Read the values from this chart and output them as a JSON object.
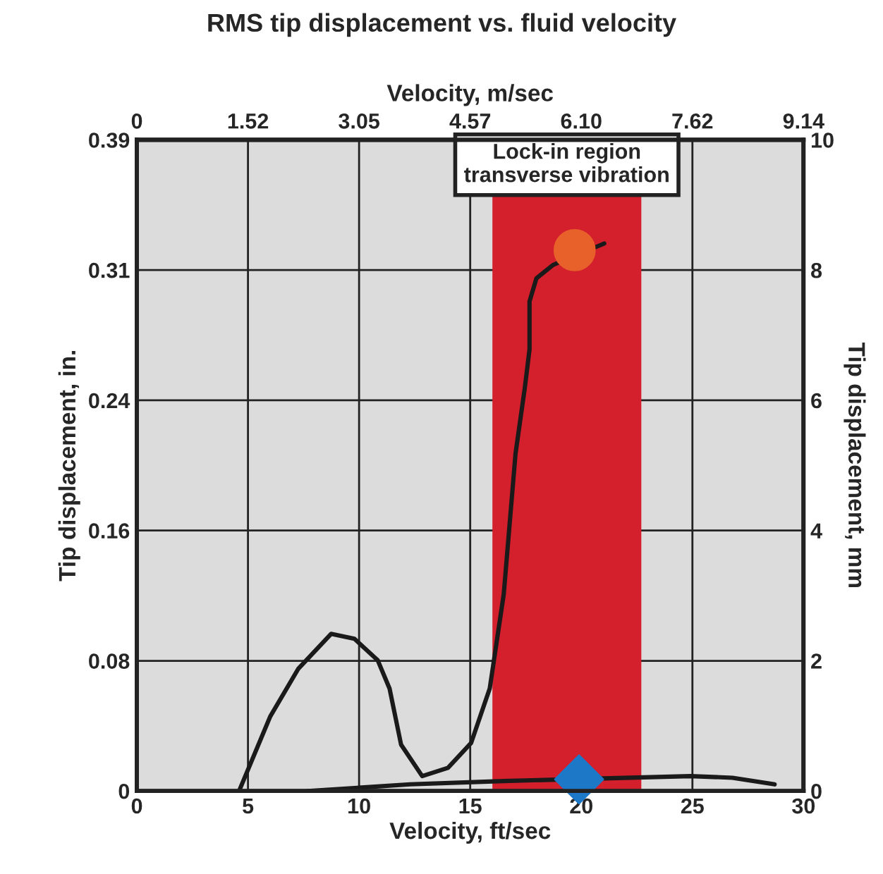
{
  "chart_data": {
    "type": "line",
    "title": "RMS tip displacement vs. fluid velocity",
    "xlabel": "Velocity, ft/sec",
    "x2label": "Velocity, m/sec",
    "ylabel": "Tip displacement, in.",
    "y2label": "Tip displacement, mm",
    "xlim": [
      0,
      30
    ],
    "xticks": [
      0,
      5,
      10,
      15,
      20,
      25,
      30
    ],
    "x2lim": [
      0,
      9.144
    ],
    "x2ticks": [
      0,
      {
        "value": 1.524,
        "label": "1.52"
      },
      {
        "value": 3.048,
        "label": "3.05"
      },
      {
        "value": 4.572,
        "label": "4.57"
      },
      {
        "value": 6.096,
        "label": "6.10"
      },
      {
        "value": 7.62,
        "label": "7.62"
      },
      {
        "value": 9.144,
        "label": "9.14"
      }
    ],
    "ylim": [
      0,
      0.3937
    ],
    "yticks": [
      0,
      {
        "value": 0.0787,
        "label": "0.08"
      },
      {
        "value": 0.1575,
        "label": "0.16"
      },
      {
        "value": 0.2362,
        "label": "0.24"
      },
      {
        "value": 0.315,
        "label": "0.31"
      },
      {
        "value": 0.3937,
        "label": "0.39"
      }
    ],
    "y2lim": [
      0,
      10
    ],
    "y2ticks": [
      0,
      2,
      4,
      6,
      8,
      10
    ],
    "grid": true,
    "bands": [
      {
        "axis": "x",
        "from": 16,
        "to": 22.7,
        "label": "Lock-in region\ntransverse vibration",
        "color": "#d41f2c"
      }
    ],
    "series": [
      {
        "color": "#1a1a1a",
        "x": [
          4.6,
          6.0,
          7.27,
          8.74,
          9.79,
          10.84,
          11.37,
          11.89,
          12.84,
          14.0,
          15.04,
          15.88,
          16.51,
          17.04,
          17.46,
          17.67,
          17.67,
          17.98,
          18.72,
          21.03
        ],
        "values": [
          0,
          0.045,
          0.074,
          0.095,
          0.092,
          0.079,
          0.062,
          0.028,
          0.009,
          0.014,
          0.029,
          0.062,
          0.119,
          0.204,
          0.244,
          0.267,
          0.296,
          0.31,
          0.318,
          0.331
        ]
      },
      {
        "color": "#1a1a1a",
        "x": [
          7.69,
          12.3,
          16.5,
          24.9,
          26.8,
          28.7
        ],
        "values": [
          0,
          0.004,
          0.006,
          0.009,
          0.008,
          0.004
        ]
      },
      {
        "type": "scatter",
        "marker": "circle",
        "color": "#e8602a",
        "x": [
          19.7
        ],
        "values": [
          0.327
        ]
      },
      {
        "type": "scatter",
        "marker": "diamond",
        "color": "#1e78c8",
        "x": [
          19.9
        ],
        "values": [
          0.007
        ]
      }
    ]
  }
}
